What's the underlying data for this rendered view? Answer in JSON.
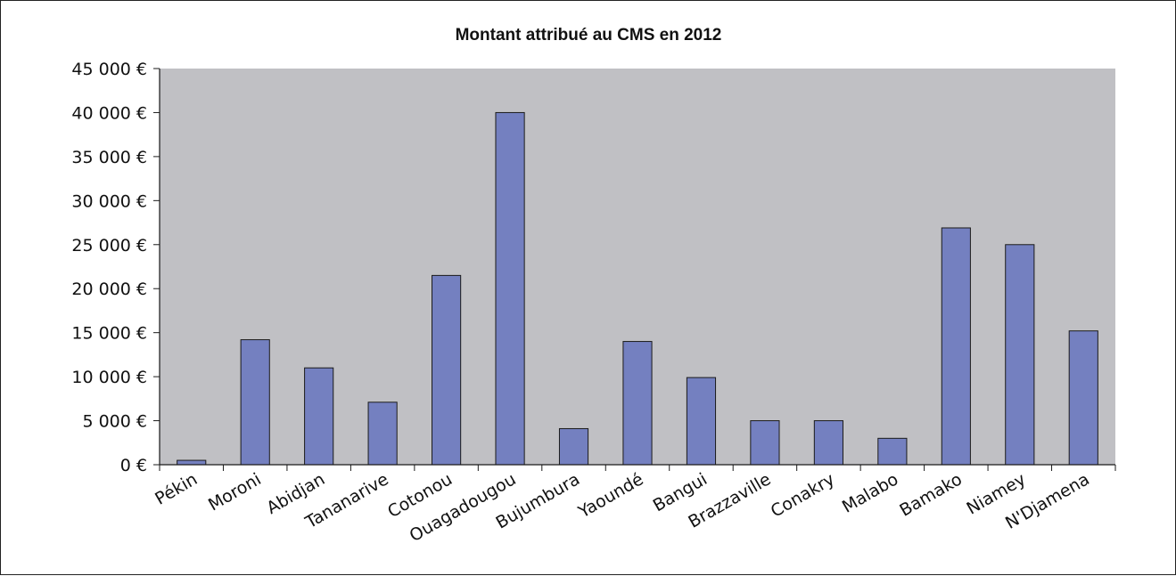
{
  "chart_data": {
    "type": "bar",
    "title": "Montant attribué au CMS en 2012",
    "xlabel": "",
    "ylabel": "",
    "categories": [
      "Pékin",
      "Moroni",
      "Abidjan",
      "Tananarive",
      "Cotonou",
      "Ouagadougou",
      "Bujumbura",
      "Yaoundé",
      "Bangui",
      "Brazzaville",
      "Conakry",
      "Malabo",
      "Bamako",
      "Niamey",
      "N'Djamena"
    ],
    "values": [
      500,
      14200,
      11000,
      7100,
      21500,
      40000,
      4100,
      14000,
      9900,
      5000,
      5000,
      3000,
      26900,
      25000,
      15200
    ],
    "ylim": [
      0,
      45000
    ],
    "yticks": [
      0,
      5000,
      10000,
      15000,
      20000,
      25000,
      30000,
      35000,
      40000,
      45000
    ],
    "ytick_labels": [
      "0 €",
      "5 000 €",
      "10 000 €",
      "15 000 €",
      "20 000 €",
      "25 000 €",
      "30 000 €",
      "35 000 €",
      "40 000 €",
      "45 000 €"
    ],
    "grid": false,
    "legend": "none",
    "colors": {
      "bar_fill": "#7480c0",
      "bar_stroke": "#1a1a1a",
      "plot_background": "#c0c0c4",
      "axis": "#1a1a1a"
    }
  }
}
